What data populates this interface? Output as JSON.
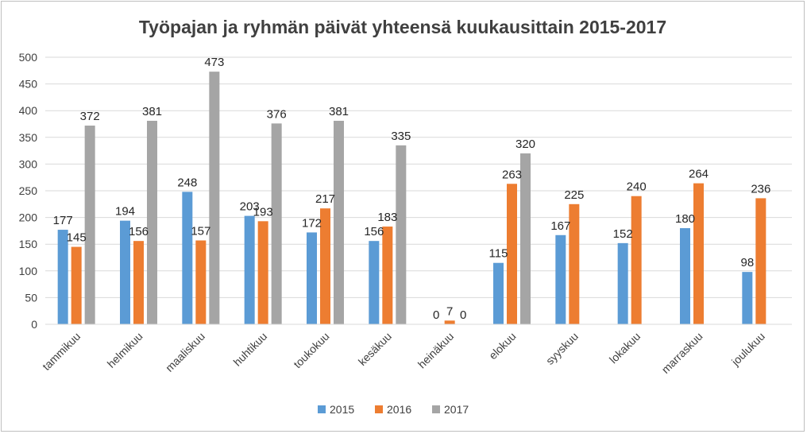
{
  "chart_data": {
    "type": "bar",
    "title": "Työpajan ja ryhmän päivät yhteensä kuukausittain 2015-2017",
    "xlabel": "",
    "ylabel": "",
    "ylim": [
      0,
      500
    ],
    "yticks": [
      0,
      50,
      100,
      150,
      200,
      250,
      300,
      350,
      400,
      450,
      500
    ],
    "grid": true,
    "legend_position": "bottom",
    "categories": [
      "tammikuu",
      "helmikuu",
      "maaliskuu",
      "huhtikuu",
      "toukokuu",
      "kesäkuu",
      "heinäkuu",
      "elokuu",
      "syyskuu",
      "lokakuu",
      "marraskuu",
      "joulukuu"
    ],
    "series": [
      {
        "name": "2015",
        "color": "#5b9bd5",
        "values": [
          177,
          194,
          248,
          203,
          172,
          156,
          0,
          115,
          167,
          152,
          180,
          98
        ]
      },
      {
        "name": "2016",
        "color": "#ed7d31",
        "values": [
          145,
          156,
          157,
          193,
          217,
          183,
          7,
          263,
          225,
          240,
          264,
          236
        ]
      },
      {
        "name": "2017",
        "color": "#a5a5a5",
        "values": [
          372,
          381,
          473,
          376,
          381,
          335,
          0,
          320,
          null,
          null,
          null,
          null
        ]
      }
    ]
  }
}
